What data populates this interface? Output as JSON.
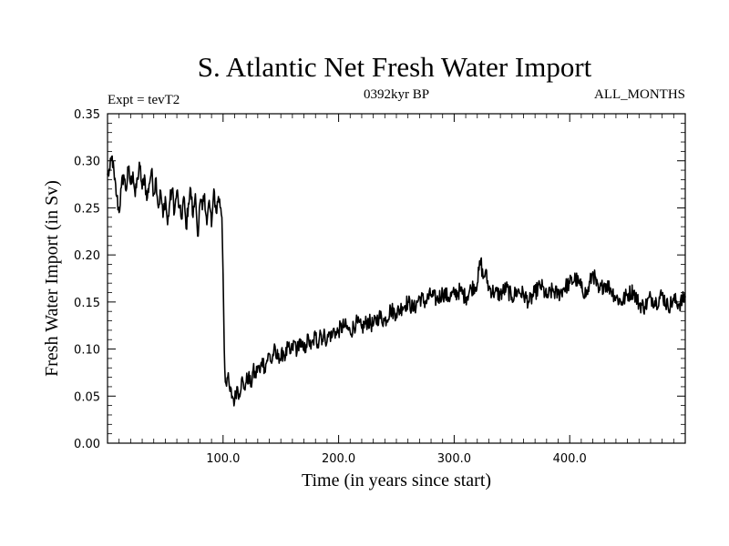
{
  "chart_data": {
    "type": "line",
    "title": "S. Atlantic Net Fresh Water Import",
    "subtitle_left": "Expt = tevT2",
    "subtitle_center": "0392kyr BP",
    "subtitle_right": "ALL_MONTHS",
    "xlabel": "Time (in years since start)",
    "ylabel": "Fresh Water Import (in Sv)",
    "xlim": [
      0,
      500
    ],
    "ylim": [
      0,
      0.35
    ],
    "x_ticks": [
      100,
      200,
      300,
      400
    ],
    "x_tick_labels": [
      "100.0",
      "200.0",
      "300.0",
      "400.0"
    ],
    "y_ticks": [
      0,
      0.05,
      0.1,
      0.15,
      0.2,
      0.25,
      0.3,
      0.35
    ],
    "y_tick_labels": [
      "0.00",
      "0.05",
      "0.10",
      "0.15",
      "0.20",
      "0.25",
      "0.30",
      "0.35"
    ],
    "grid": false,
    "legend": false,
    "series": [
      {
        "color": "#000000",
        "x": [
          0,
          2,
          4,
          6,
          8,
          10,
          12,
          14,
          16,
          18,
          20,
          22,
          24,
          26,
          28,
          30,
          32,
          34,
          36,
          38,
          40,
          42,
          44,
          46,
          48,
          50,
          52,
          54,
          56,
          58,
          60,
          62,
          64,
          66,
          68,
          70,
          72,
          74,
          76,
          78,
          80,
          82,
          84,
          86,
          88,
          90,
          92,
          94,
          96,
          98,
          99,
          100,
          101,
          102,
          104,
          106,
          108,
          110,
          112,
          114,
          116,
          118,
          120,
          122,
          124,
          126,
          128,
          130,
          132,
          134,
          136,
          138,
          140,
          142,
          144,
          146,
          148,
          150,
          152,
          154,
          156,
          158,
          160,
          162,
          164,
          166,
          168,
          170,
          172,
          174,
          176,
          178,
          180,
          182,
          184,
          186,
          188,
          190,
          192,
          194,
          196,
          198,
          200,
          205,
          210,
          215,
          220,
          225,
          230,
          235,
          240,
          245,
          250,
          255,
          260,
          265,
          270,
          275,
          280,
          285,
          290,
          295,
          300,
          305,
          310,
          315,
          320,
          323,
          325,
          327,
          330,
          335,
          340,
          345,
          350,
          355,
          360,
          365,
          370,
          375,
          380,
          385,
          390,
          395,
          400,
          405,
          410,
          415,
          420,
          425,
          430,
          435,
          440,
          445,
          450,
          455,
          460,
          465,
          470,
          475,
          480,
          485,
          490,
          495,
          500
        ],
        "y": [
          0.285,
          0.29,
          0.305,
          0.28,
          0.262,
          0.245,
          0.272,
          0.285,
          0.268,
          0.292,
          0.275,
          0.288,
          0.262,
          0.282,
          0.295,
          0.27,
          0.285,
          0.258,
          0.275,
          0.29,
          0.265,
          0.282,
          0.25,
          0.268,
          0.24,
          0.262,
          0.232,
          0.258,
          0.27,
          0.245,
          0.268,
          0.25,
          0.238,
          0.262,
          0.228,
          0.255,
          0.27,
          0.24,
          0.265,
          0.22,
          0.255,
          0.248,
          0.265,
          0.232,
          0.258,
          0.23,
          0.27,
          0.245,
          0.262,
          0.25,
          0.24,
          0.18,
          0.1,
          0.065,
          0.07,
          0.055,
          0.05,
          0.045,
          0.06,
          0.052,
          0.068,
          0.058,
          0.065,
          0.072,
          0.06,
          0.078,
          0.07,
          0.082,
          0.075,
          0.09,
          0.08,
          0.088,
          0.095,
          0.085,
          0.1,
          0.09,
          0.095,
          0.088,
          0.098,
          0.092,
          0.102,
          0.095,
          0.1,
          0.108,
          0.097,
          0.11,
          0.102,
          0.098,
          0.105,
          0.112,
          0.1,
          0.108,
          0.115,
          0.105,
          0.12,
          0.11,
          0.115,
          0.108,
          0.118,
          0.112,
          0.122,
          0.115,
          0.12,
          0.125,
          0.118,
          0.128,
          0.122,
          0.13,
          0.125,
          0.135,
          0.13,
          0.142,
          0.138,
          0.145,
          0.15,
          0.142,
          0.155,
          0.15,
          0.158,
          0.152,
          0.16,
          0.155,
          0.158,
          0.162,
          0.155,
          0.165,
          0.17,
          0.195,
          0.175,
          0.182,
          0.165,
          0.16,
          0.158,
          0.165,
          0.155,
          0.162,
          0.158,
          0.15,
          0.16,
          0.168,
          0.155,
          0.162,
          0.158,
          0.165,
          0.17,
          0.175,
          0.165,
          0.158,
          0.182,
          0.16,
          0.17,
          0.165,
          0.155,
          0.15,
          0.158,
          0.162,
          0.148,
          0.145,
          0.155,
          0.15,
          0.158,
          0.145,
          0.152,
          0.148,
          0.155
        ]
      }
    ]
  }
}
